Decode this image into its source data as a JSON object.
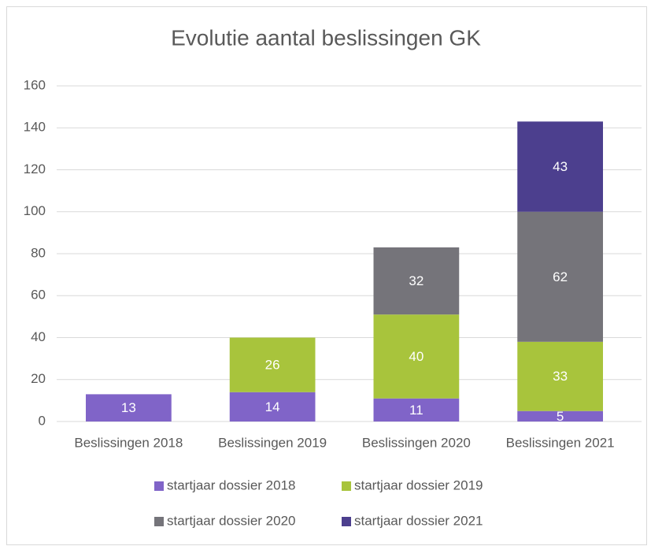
{
  "chart_data": {
    "type": "stacked_bar",
    "title": "Evolutie aantal beslissingen GK",
    "categories": [
      "Beslissingen 2018",
      "Beslissingen 2019",
      "Beslissingen 2020",
      "Beslissingen 2021"
    ],
    "series": [
      {
        "name": "startjaar dossier 2018",
        "color": "#8064c8",
        "values": [
          13,
          14,
          11,
          5
        ]
      },
      {
        "name": "startjaar dossier 2019",
        "color": "#a8c43c",
        "values": [
          null,
          26,
          40,
          33
        ]
      },
      {
        "name": "startjaar dossier 2020",
        "color": "#75747a",
        "values": [
          null,
          null,
          32,
          62
        ]
      },
      {
        "name": "startjaar dossier 2021",
        "color": "#4c3f8e",
        "values": [
          null,
          null,
          null,
          43
        ]
      }
    ],
    "ylim": [
      0,
      160
    ],
    "yticks": [
      0,
      20,
      40,
      60,
      80,
      100,
      120,
      140,
      160
    ],
    "grid": true,
    "legend": "bottom"
  }
}
